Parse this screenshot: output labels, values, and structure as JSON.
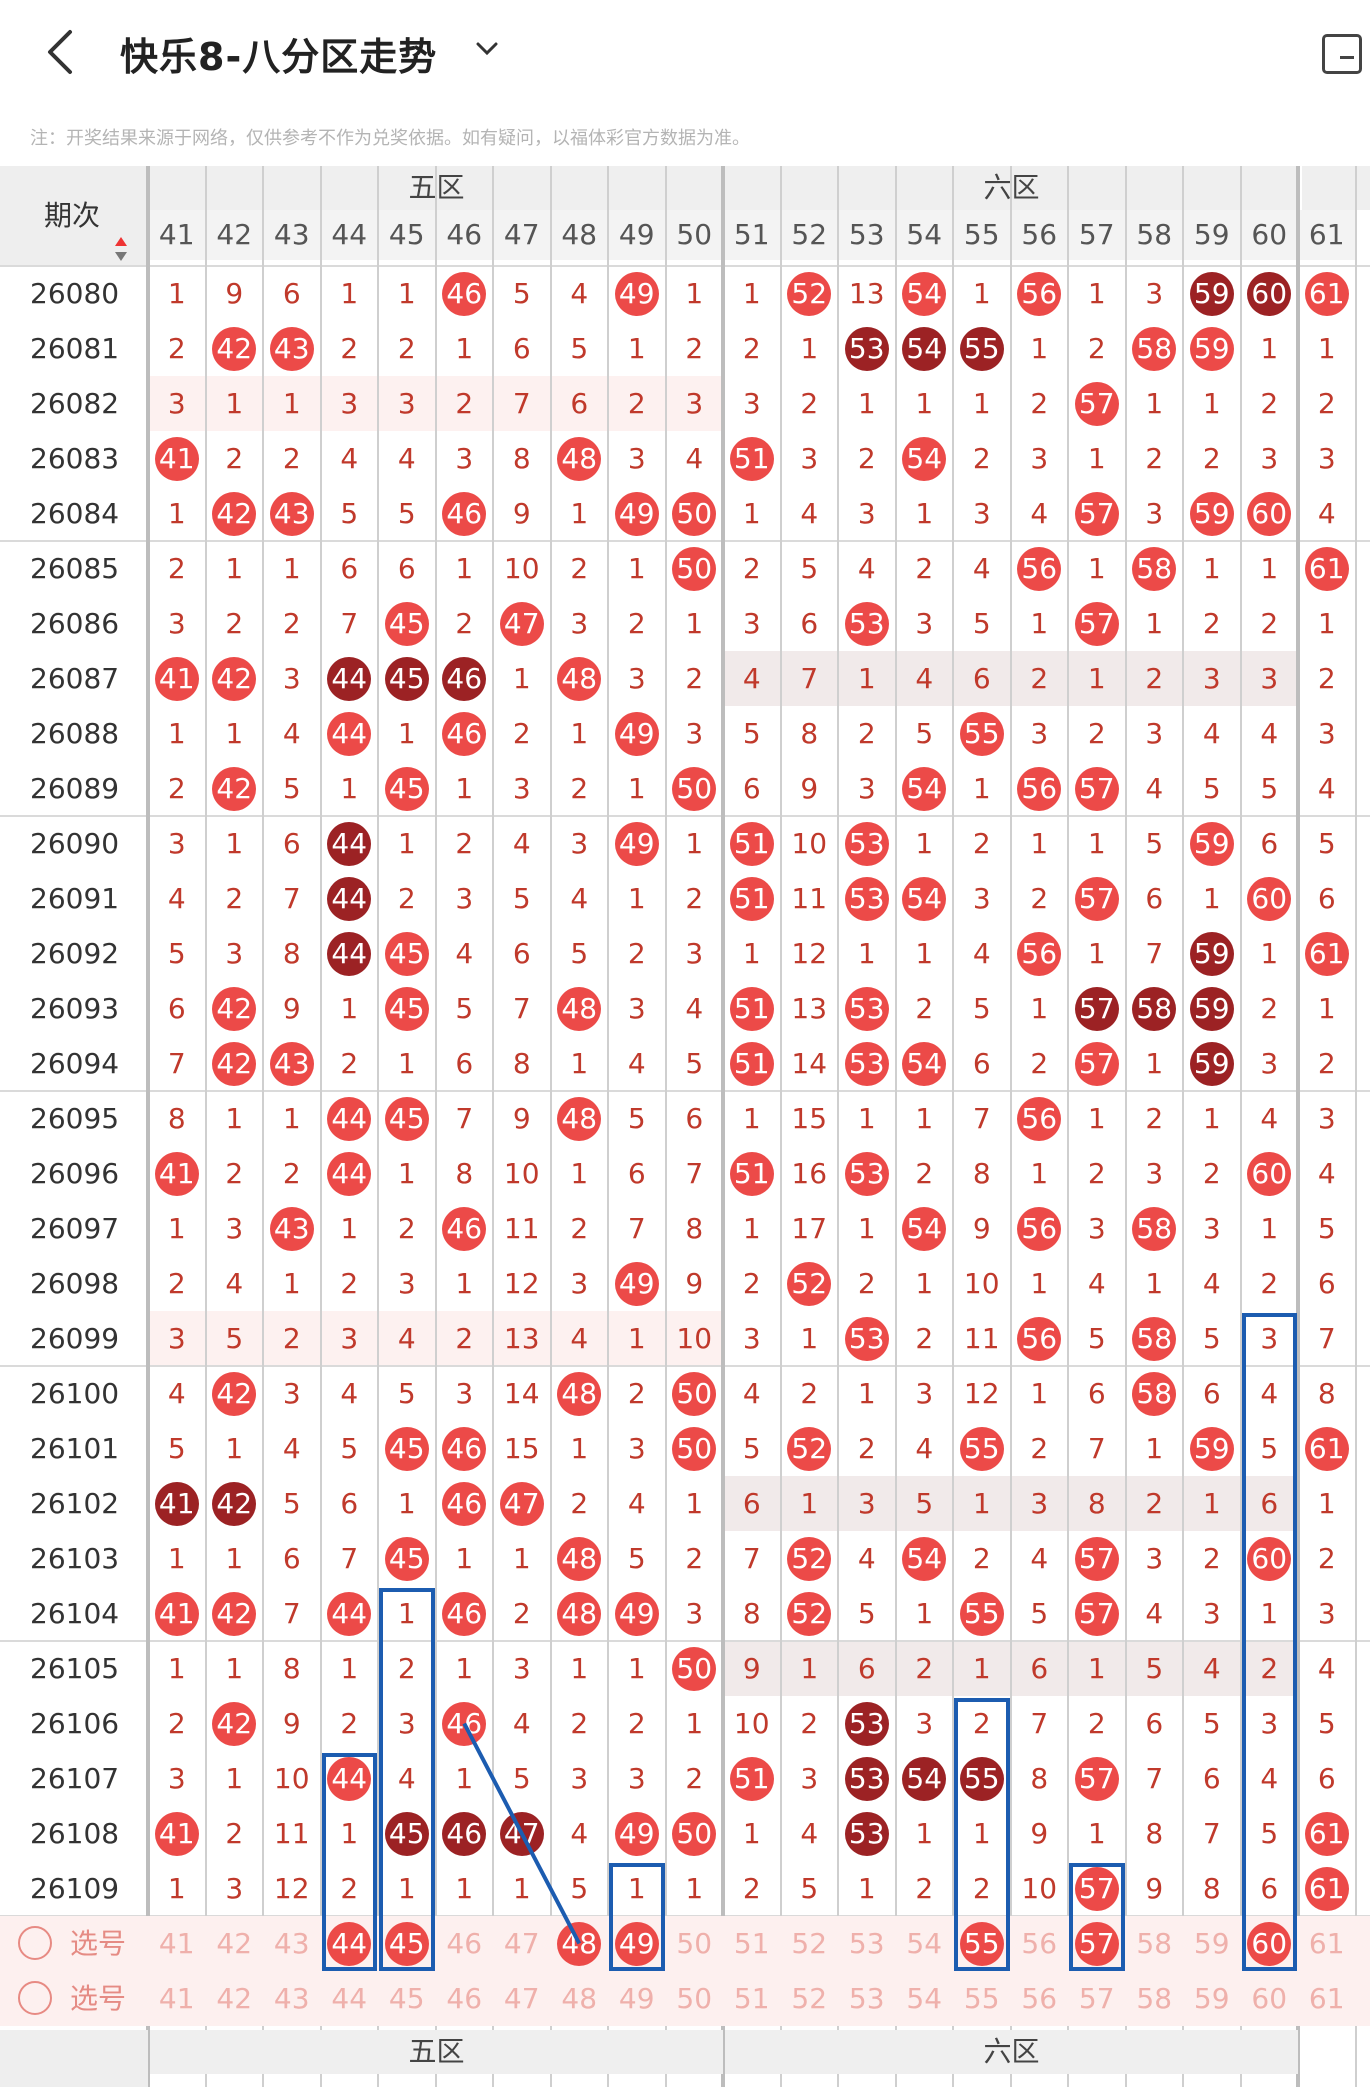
{
  "header": {
    "title": "快乐8-八分区走势",
    "back_icon": "chevron-left-icon",
    "dropdown_icon": "chevron-down-icon",
    "share_icon": "share-screen-icon"
  },
  "note": "注：开奖结果来源于网络，仅供参考不作为兑奖依据。如有疑问，以福体彩官方数据为准。",
  "table": {
    "period_header": "期次",
    "zones": [
      {
        "name": "五区"
      },
      {
        "name": "六区"
      }
    ],
    "columns": [
      "41",
      "42",
      "43",
      "44",
      "45",
      "46",
      "47",
      "48",
      "49",
      "50",
      "51",
      "52",
      "53",
      "54",
      "55",
      "56",
      "57",
      "58",
      "59",
      "60",
      "61"
    ],
    "rows": [
      {
        "period": "26080",
        "cells": [
          "1",
          "9",
          "6",
          "1",
          "1",
          "46",
          "5",
          "4",
          "49",
          "1",
          "1",
          "52",
          "13",
          "54",
          "1",
          "56",
          "1",
          "3",
          "59",
          "60",
          "61"
        ]
      },
      {
        "period": "26081",
        "cells": [
          "2",
          "42",
          "43",
          "2",
          "2",
          "1",
          "6",
          "5",
          "1",
          "2",
          "2",
          "1",
          "53",
          "54",
          "55",
          "1",
          "2",
          "58",
          "59",
          "1",
          "1"
        ]
      },
      {
        "period": "26082",
        "cells": [
          "3",
          "1",
          "1",
          "3",
          "3",
          "2",
          "7",
          "6",
          "2",
          "3",
          "3",
          "2",
          "1",
          "1",
          "1",
          "2",
          "57",
          "1",
          "1",
          "2",
          "2"
        ]
      },
      {
        "period": "26083",
        "cells": [
          "41",
          "2",
          "2",
          "4",
          "4",
          "3",
          "8",
          "48",
          "3",
          "4",
          "51",
          "3",
          "2",
          "54",
          "2",
          "3",
          "1",
          "2",
          "2",
          "3",
          "3"
        ]
      },
      {
        "period": "26084",
        "cells": [
          "1",
          "42",
          "43",
          "5",
          "5",
          "46",
          "9",
          "1",
          "49",
          "50",
          "1",
          "4",
          "3",
          "1",
          "3",
          "4",
          "57",
          "3",
          "59",
          "60",
          "4"
        ]
      },
      {
        "period": "26085",
        "cells": [
          "2",
          "1",
          "1",
          "6",
          "6",
          "1",
          "10",
          "2",
          "1",
          "50",
          "2",
          "5",
          "4",
          "2",
          "4",
          "56",
          "1",
          "58",
          "1",
          "1",
          "61"
        ]
      },
      {
        "period": "26086",
        "cells": [
          "3",
          "2",
          "2",
          "7",
          "45",
          "2",
          "47",
          "3",
          "2",
          "1",
          "3",
          "6",
          "53",
          "3",
          "5",
          "1",
          "57",
          "1",
          "2",
          "2",
          "1"
        ]
      },
      {
        "period": "26087",
        "cells": [
          "41",
          "42",
          "3",
          "44",
          "45",
          "46",
          "1",
          "48",
          "3",
          "2",
          "4",
          "7",
          "1",
          "4",
          "6",
          "2",
          "1",
          "2",
          "3",
          "3",
          "2"
        ]
      },
      {
        "period": "26088",
        "cells": [
          "1",
          "1",
          "4",
          "44",
          "1",
          "46",
          "2",
          "1",
          "49",
          "3",
          "5",
          "8",
          "2",
          "5",
          "55",
          "3",
          "2",
          "3",
          "4",
          "4",
          "3"
        ]
      },
      {
        "period": "26089",
        "cells": [
          "2",
          "42",
          "5",
          "1",
          "45",
          "1",
          "3",
          "2",
          "1",
          "50",
          "6",
          "9",
          "3",
          "54",
          "1",
          "56",
          "57",
          "4",
          "5",
          "5",
          "4"
        ]
      },
      {
        "period": "26090",
        "cells": [
          "3",
          "1",
          "6",
          "44",
          "1",
          "2",
          "4",
          "3",
          "49",
          "1",
          "51",
          "10",
          "53",
          "1",
          "2",
          "1",
          "1",
          "5",
          "59",
          "6",
          "5"
        ]
      },
      {
        "period": "26091",
        "cells": [
          "4",
          "2",
          "7",
          "44",
          "2",
          "3",
          "5",
          "4",
          "1",
          "2",
          "51",
          "11",
          "53",
          "54",
          "3",
          "2",
          "57",
          "6",
          "1",
          "60",
          "6"
        ]
      },
      {
        "period": "26092",
        "cells": [
          "5",
          "3",
          "8",
          "44",
          "45",
          "4",
          "6",
          "5",
          "2",
          "3",
          "1",
          "12",
          "1",
          "1",
          "4",
          "56",
          "1",
          "7",
          "59",
          "1",
          "61"
        ]
      },
      {
        "period": "26093",
        "cells": [
          "6",
          "42",
          "9",
          "1",
          "45",
          "5",
          "7",
          "48",
          "3",
          "4",
          "51",
          "13",
          "53",
          "2",
          "5",
          "1",
          "57",
          "58",
          "59",
          "2",
          "1"
        ]
      },
      {
        "period": "26094",
        "cells": [
          "7",
          "42",
          "43",
          "2",
          "1",
          "6",
          "8",
          "1",
          "4",
          "5",
          "51",
          "14",
          "53",
          "54",
          "6",
          "2",
          "57",
          "1",
          "59",
          "3",
          "2"
        ]
      },
      {
        "period": "26095",
        "cells": [
          "8",
          "1",
          "1",
          "44",
          "45",
          "7",
          "9",
          "48",
          "5",
          "6",
          "1",
          "15",
          "1",
          "1",
          "7",
          "56",
          "1",
          "2",
          "1",
          "4",
          "3"
        ]
      },
      {
        "period": "26096",
        "cells": [
          "41",
          "2",
          "2",
          "44",
          "1",
          "8",
          "10",
          "1",
          "6",
          "7",
          "51",
          "16",
          "53",
          "2",
          "8",
          "1",
          "2",
          "3",
          "2",
          "60",
          "4"
        ]
      },
      {
        "period": "26097",
        "cells": [
          "1",
          "3",
          "43",
          "1",
          "2",
          "46",
          "11",
          "2",
          "7",
          "8",
          "1",
          "17",
          "1",
          "54",
          "9",
          "56",
          "3",
          "58",
          "3",
          "1",
          "5"
        ]
      },
      {
        "period": "26098",
        "cells": [
          "2",
          "4",
          "1",
          "2",
          "3",
          "1",
          "12",
          "3",
          "49",
          "9",
          "2",
          "52",
          "2",
          "1",
          "10",
          "1",
          "4",
          "1",
          "4",
          "2",
          "6"
        ]
      },
      {
        "period": "26099",
        "cells": [
          "3",
          "5",
          "2",
          "3",
          "4",
          "2",
          "13",
          "4",
          "1",
          "10",
          "3",
          "1",
          "53",
          "2",
          "11",
          "56",
          "5",
          "58",
          "5",
          "3",
          "7"
        ]
      },
      {
        "period": "26100",
        "cells": [
          "4",
          "42",
          "3",
          "4",
          "5",
          "3",
          "14",
          "48",
          "2",
          "50",
          "4",
          "2",
          "1",
          "3",
          "12",
          "1",
          "6",
          "58",
          "6",
          "4",
          "8"
        ]
      },
      {
        "period": "26101",
        "cells": [
          "5",
          "1",
          "4",
          "5",
          "45",
          "46",
          "15",
          "1",
          "3",
          "50",
          "5",
          "52",
          "2",
          "4",
          "55",
          "2",
          "7",
          "1",
          "59",
          "5",
          "61"
        ]
      },
      {
        "period": "26102",
        "cells": [
          "41",
          "42",
          "5",
          "6",
          "1",
          "46",
          "47",
          "2",
          "4",
          "1",
          "6",
          "1",
          "3",
          "5",
          "1",
          "3",
          "8",
          "2",
          "1",
          "6",
          "1"
        ]
      },
      {
        "period": "26103",
        "cells": [
          "1",
          "1",
          "6",
          "7",
          "45",
          "1",
          "1",
          "48",
          "5",
          "2",
          "7",
          "52",
          "4",
          "54",
          "2",
          "4",
          "57",
          "3",
          "2",
          "60",
          "2"
        ]
      },
      {
        "period": "26104",
        "cells": [
          "41",
          "42",
          "7",
          "44",
          "1",
          "46",
          "2",
          "48",
          "49",
          "3",
          "8",
          "52",
          "5",
          "1",
          "55",
          "5",
          "57",
          "4",
          "3",
          "1",
          "3"
        ]
      },
      {
        "period": "26105",
        "cells": [
          "1",
          "1",
          "8",
          "1",
          "2",
          "1",
          "3",
          "1",
          "1",
          "50",
          "9",
          "1",
          "6",
          "2",
          "1",
          "6",
          "1",
          "5",
          "4",
          "2",
          "4"
        ]
      },
      {
        "period": "26106",
        "cells": [
          "2",
          "42",
          "9",
          "2",
          "3",
          "46",
          "4",
          "2",
          "2",
          "1",
          "10",
          "2",
          "53",
          "3",
          "2",
          "7",
          "2",
          "6",
          "5",
          "3",
          "5"
        ]
      },
      {
        "period": "26107",
        "cells": [
          "3",
          "1",
          "10",
          "44",
          "4",
          "1",
          "5",
          "3",
          "3",
          "2",
          "51",
          "3",
          "53",
          "54",
          "55",
          "8",
          "57",
          "7",
          "6",
          "4",
          "6"
        ]
      },
      {
        "period": "26108",
        "cells": [
          "41",
          "2",
          "11",
          "1",
          "45",
          "46",
          "47",
          "4",
          "49",
          "50",
          "1",
          "4",
          "53",
          "1",
          "1",
          "9",
          "1",
          "8",
          "7",
          "5",
          "61"
        ]
      },
      {
        "period": "26109",
        "cells": [
          "1",
          "3",
          "12",
          "2",
          "1",
          "1",
          "1",
          "5",
          "1",
          "1",
          "2",
          "5",
          "1",
          "2",
          "2",
          "10",
          "57",
          "9",
          "8",
          "6",
          "61"
        ]
      }
    ],
    "select_label": "选号",
    "select_rows": [
      {
        "picked": [
          "44",
          "45",
          "48",
          "49",
          "55",
          "57",
          "60"
        ]
      },
      {
        "picked": []
      }
    ]
  },
  "colors": {
    "ball_red": "#ec4a48",
    "ball_dark": "#9c2224",
    "digit_red": "#c0392b",
    "highlight_blue": "#1c5cb0"
  }
}
